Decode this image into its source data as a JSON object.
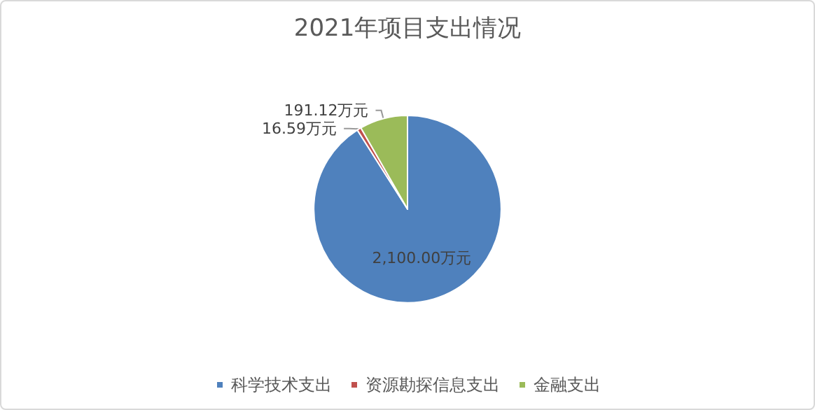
{
  "chart_data": {
    "type": "pie",
    "title": "2021年项目支出情况",
    "categories": [
      "科学技术支出",
      "资源勘探信息支出",
      "金融支出"
    ],
    "values": [
      2100,
      16.59,
      191.12
    ],
    "value_labels": [
      "2,100.00万元",
      "16.59万元",
      "191.12万元"
    ],
    "colors": [
      "#4f81bd",
      "#c0504d",
      "#9bbb59"
    ],
    "legend": "bottom"
  }
}
